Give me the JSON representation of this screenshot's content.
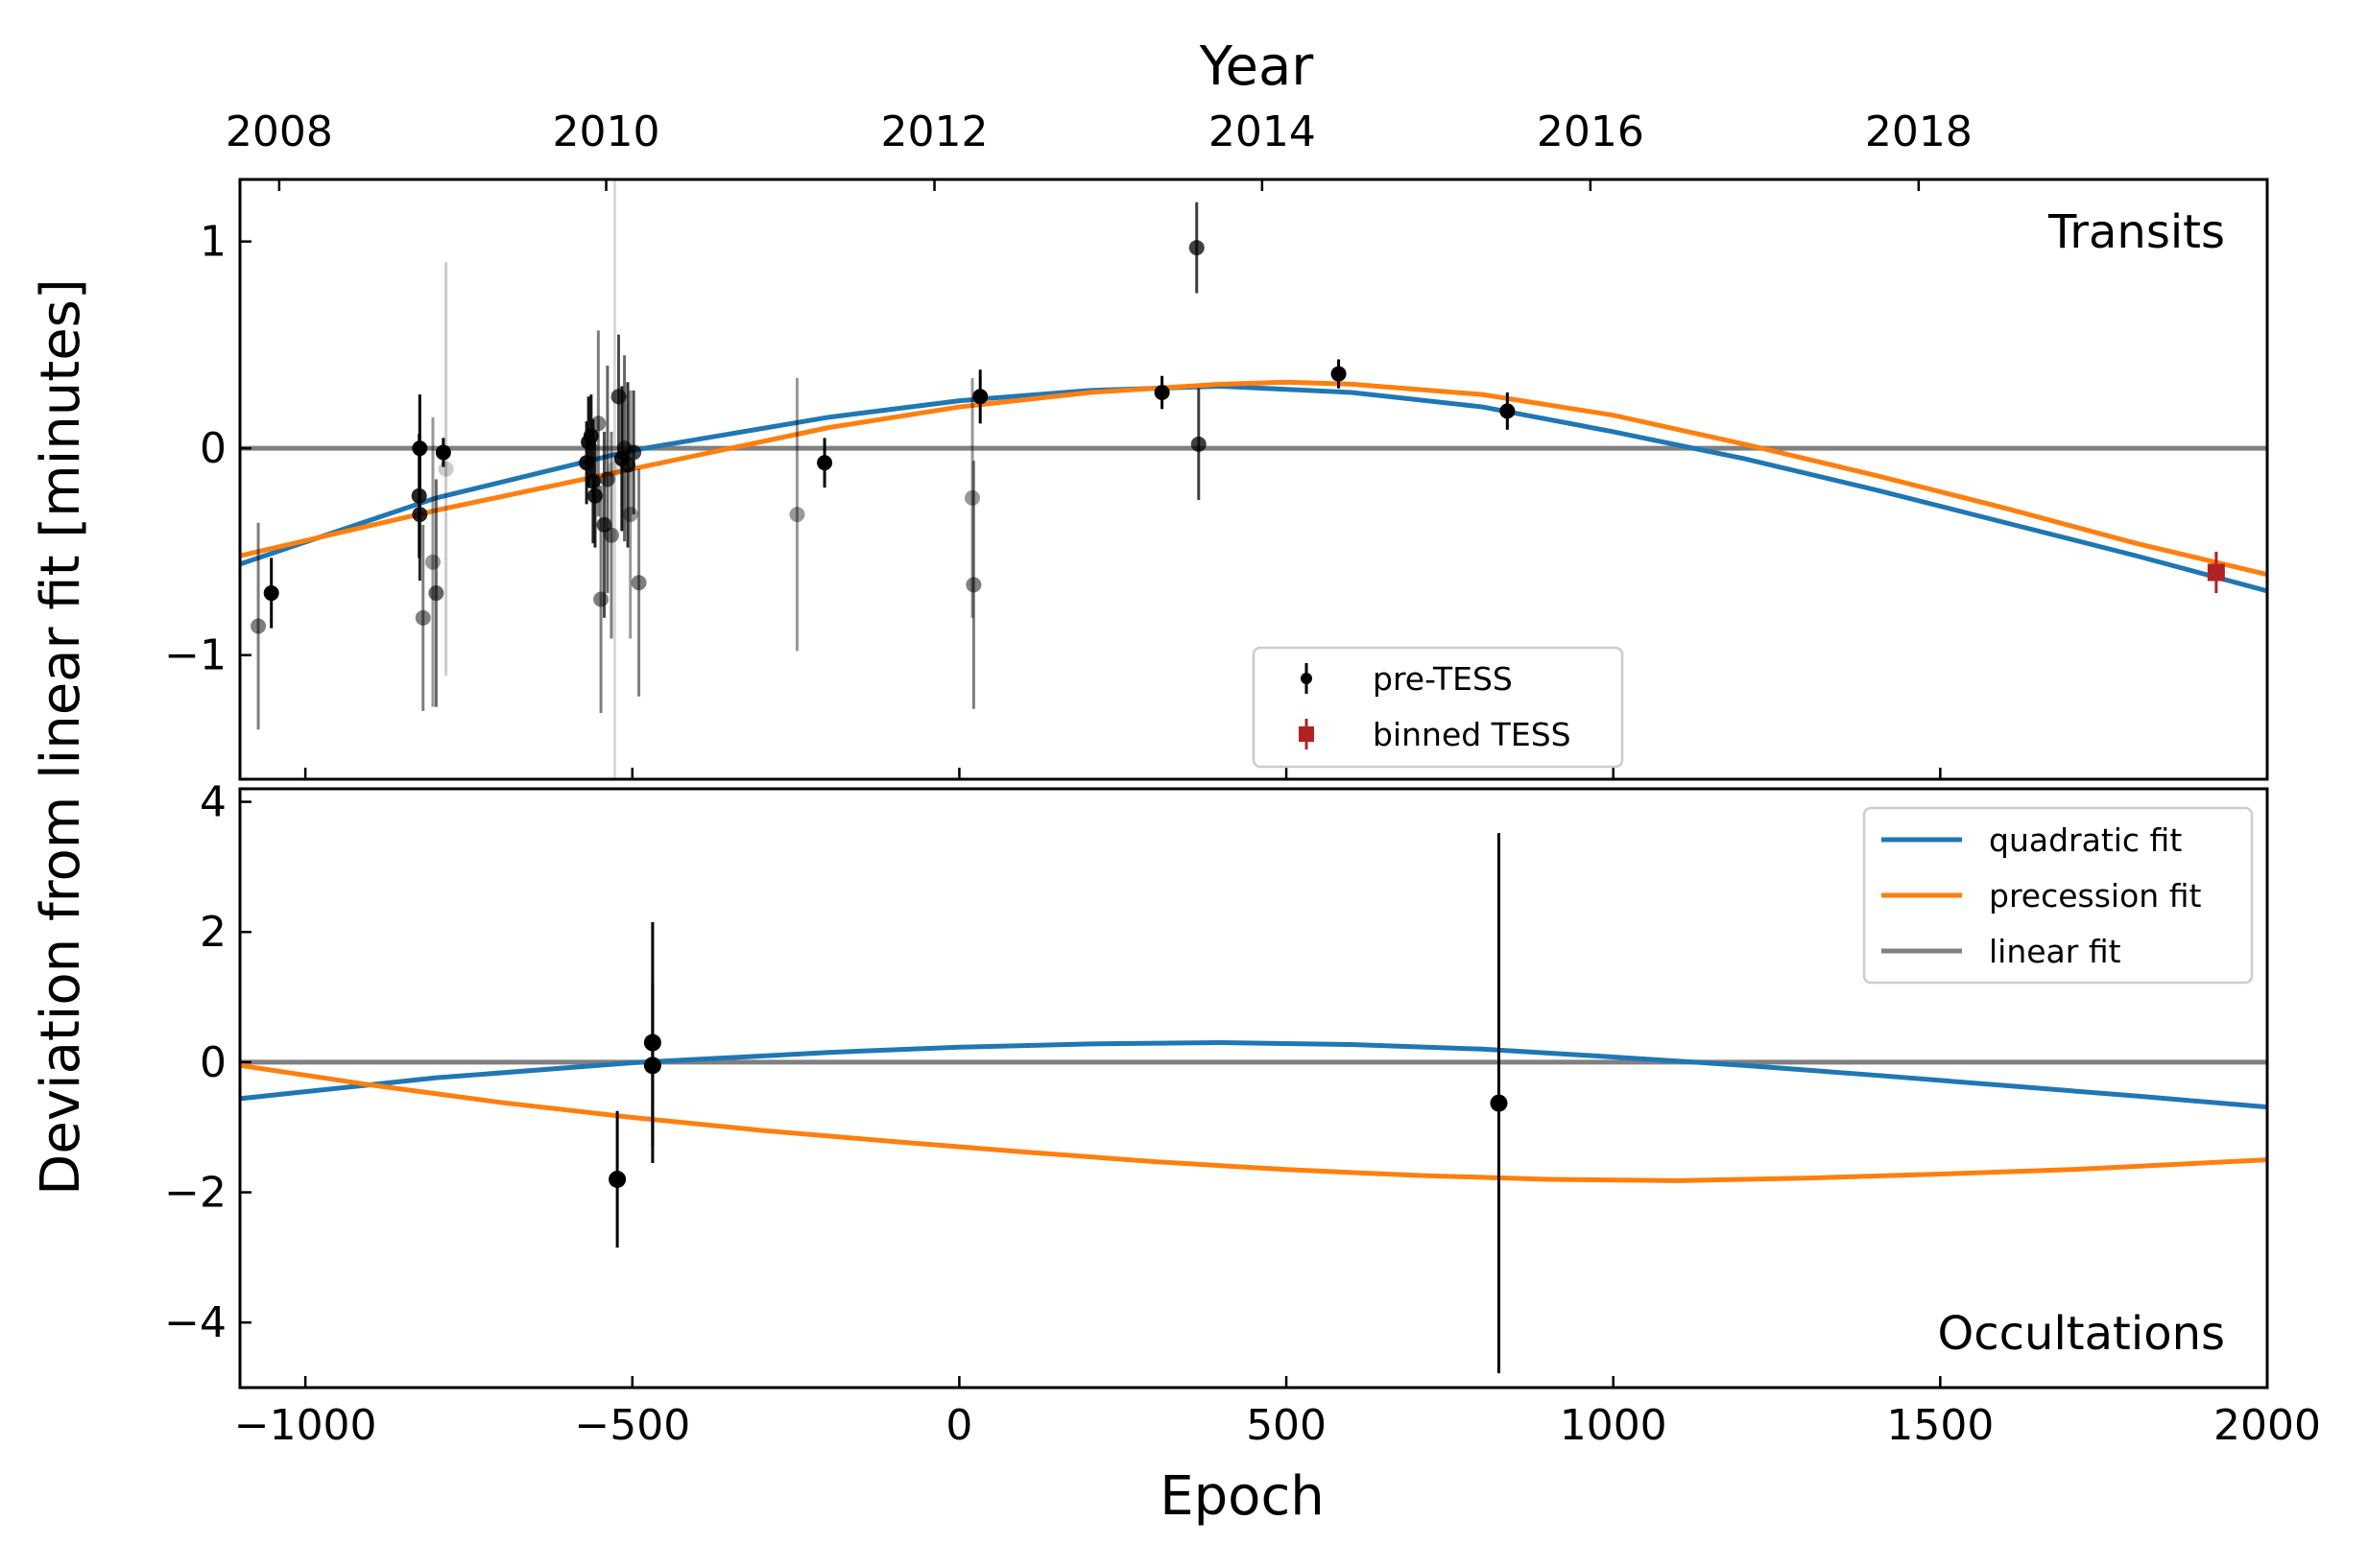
{
  "chart_data": {
    "type": "scatter",
    "colors": {
      "quadratic": "#1f77b4",
      "precession": "#ff7f0e",
      "linear": "#808080",
      "pre_tess": "#000000",
      "binned_tess": "#b22222"
    },
    "x_axis": {
      "label": "Epoch",
      "range": [
        -1100,
        2000
      ],
      "ticks": [
        -1000,
        -500,
        0,
        500,
        1000,
        1500,
        2000
      ],
      "tick_labels": [
        "−1000",
        "−500",
        "0",
        "500",
        "1000",
        "1500",
        "2000"
      ]
    },
    "top_axis": {
      "label": "Year",
      "ticks": [
        2008,
        2010,
        2012,
        2014,
        2016,
        2018
      ],
      "tick_epochs": [
        -1040,
        -540,
        -38,
        463,
        965,
        1467
      ]
    },
    "y_label": "Deviation from linear fit [minutes]",
    "panels": [
      {
        "name": "Transits",
        "y_range": [
          -1.6,
          1.3
        ],
        "y_ticks": [
          -1,
          0,
          1
        ],
        "y_tick_labels": [
          "−1",
          "0",
          "1"
        ],
        "fits": {
          "quadratic": [
            [
              -1100,
              -0.56
            ],
            [
              -800,
              -0.24
            ],
            [
              -500,
              -0.01
            ],
            [
              -200,
              0.15
            ],
            [
              0,
              0.23
            ],
            [
              200,
              0.28
            ],
            [
              400,
              0.3
            ],
            [
              600,
              0.27
            ],
            [
              800,
              0.2
            ],
            [
              1000,
              0.08
            ],
            [
              1200,
              -0.05
            ],
            [
              1400,
              -0.2
            ],
            [
              1600,
              -0.36
            ],
            [
              1800,
              -0.52
            ],
            [
              2000,
              -0.69
            ]
          ],
          "precession": [
            [
              -1100,
              -0.52
            ],
            [
              -800,
              -0.3
            ],
            [
              -500,
              -0.1
            ],
            [
              -200,
              0.1
            ],
            [
              0,
              0.2
            ],
            [
              200,
              0.27
            ],
            [
              400,
              0.31
            ],
            [
              500,
              0.32
            ],
            [
              600,
              0.31
            ],
            [
              800,
              0.26
            ],
            [
              1000,
              0.16
            ],
            [
              1200,
              0.02
            ],
            [
              1400,
              -0.13
            ],
            [
              1600,
              -0.29
            ],
            [
              1800,
              -0.46
            ],
            [
              2000,
              -0.61
            ]
          ],
          "linear": [
            [
              -1100,
              0
            ],
            [
              2000,
              0
            ]
          ]
        },
        "points_pre_tess": [
          {
            "x": -1072,
            "y": -0.86,
            "err": 0.5,
            "alpha": 0.5
          },
          {
            "x": -1052,
            "y": -0.7,
            "err": 0.17,
            "alpha": 1.0
          },
          {
            "x": -825,
            "y": 0.0,
            "err": 0.26,
            "alpha": 1.0
          },
          {
            "x": -826,
            "y": -0.23,
            "err": 0.3,
            "alpha": 0.85
          },
          {
            "x": -825,
            "y": -0.32,
            "err": 0.32,
            "alpha": 0.85
          },
          {
            "x": -820,
            "y": -0.82,
            "err": 0.45,
            "alpha": 0.5
          },
          {
            "x": -805,
            "y": -0.55,
            "err": 0.7,
            "alpha": 0.4
          },
          {
            "x": -800,
            "y": -0.7,
            "err": 0.55,
            "alpha": 0.6
          },
          {
            "x": -789,
            "y": -0.02,
            "err": 0.07,
            "alpha": 1.0
          },
          {
            "x": -785,
            "y": -0.1,
            "err": 1.0,
            "alpha": 0.2
          },
          {
            "x": -570,
            "y": -0.07,
            "err": 0.2,
            "alpha": 0.9
          },
          {
            "x": -567,
            "y": 0.03,
            "err": 0.22,
            "alpha": 0.9
          },
          {
            "x": -563,
            "y": 0.06,
            "err": 0.2,
            "alpha": 0.9
          },
          {
            "x": -560,
            "y": -0.16,
            "err": 0.3,
            "alpha": 0.85
          },
          {
            "x": -557,
            "y": -0.23,
            "err": 0.25,
            "alpha": 0.85
          },
          {
            "x": -552,
            "y": 0.12,
            "err": 0.45,
            "alpha": 0.5
          },
          {
            "x": -548,
            "y": -0.73,
            "err": 0.55,
            "alpha": 0.5
          },
          {
            "x": -543,
            "y": -0.37,
            "err": 0.45,
            "alpha": 0.7
          },
          {
            "x": -538,
            "y": -0.15,
            "err": 0.55,
            "alpha": 0.6
          },
          {
            "x": -532,
            "y": -0.42,
            "err": 0.5,
            "alpha": 0.5
          },
          {
            "x": -527,
            "y": -0.1,
            "err": 1.5,
            "alpha": 0.15
          },
          {
            "x": -521,
            "y": 0.25,
            "err": 0.3,
            "alpha": 0.7
          },
          {
            "x": -516,
            "y": -0.05,
            "err": 0.35,
            "alpha": 0.9
          },
          {
            "x": -512,
            "y": 0.0,
            "err": 0.45,
            "alpha": 0.6
          },
          {
            "x": -507,
            "y": -0.08,
            "err": 0.4,
            "alpha": 0.8
          },
          {
            "x": -503,
            "y": -0.32,
            "err": 0.6,
            "alpha": 0.4
          },
          {
            "x": -498,
            "y": -0.02,
            "err": 0.3,
            "alpha": 0.7
          },
          {
            "x": -490,
            "y": -0.65,
            "err": 0.55,
            "alpha": 0.5
          },
          {
            "x": -248,
            "y": -0.32,
            "err": 0.66,
            "alpha": 0.4
          },
          {
            "x": -206,
            "y": -0.07,
            "err": 0.12,
            "alpha": 1.0
          },
          {
            "x": 20,
            "y": -0.24,
            "err": 0.58,
            "alpha": 0.4
          },
          {
            "x": 22,
            "y": -0.66,
            "err": 0.6,
            "alpha": 0.5
          },
          {
            "x": 32,
            "y": 0.25,
            "err": 0.13,
            "alpha": 1.0
          },
          {
            "x": 310,
            "y": 0.27,
            "err": 0.08,
            "alpha": 1.0
          },
          {
            "x": 363,
            "y": 0.97,
            "err": 0.22,
            "alpha": 0.75
          },
          {
            "x": 366,
            "y": 0.02,
            "err": 0.27,
            "alpha": 0.75
          },
          {
            "x": 580,
            "y": 0.36,
            "err": 0.07,
            "alpha": 1.0
          },
          {
            "x": 838,
            "y": 0.18,
            "err": 0.09,
            "alpha": 1.0
          }
        ],
        "points_binned_tess": [
          {
            "x": 1922,
            "y": -0.6,
            "err": 0.1
          }
        ]
      },
      {
        "name": "Occultations",
        "y_range": [
          -5,
          4.2
        ],
        "y_ticks": [
          -4,
          -2,
          0,
          2,
          4
        ],
        "y_tick_labels": [
          "−4",
          "−2",
          "0",
          "2",
          "4"
        ],
        "fits": {
          "quadratic": [
            [
              -1100,
              -0.56
            ],
            [
              -800,
              -0.24
            ],
            [
              -500,
              -0.01
            ],
            [
              -200,
              0.15
            ],
            [
              0,
              0.23
            ],
            [
              200,
              0.28
            ],
            [
              400,
              0.3
            ],
            [
              600,
              0.27
            ],
            [
              800,
              0.2
            ],
            [
              1000,
              0.08
            ],
            [
              1200,
              -0.05
            ],
            [
              1400,
              -0.2
            ],
            [
              1600,
              -0.36
            ],
            [
              1800,
              -0.52
            ],
            [
              2000,
              -0.69
            ]
          ],
          "precession": [
            [
              -1100,
              -0.05
            ],
            [
              -900,
              -0.35
            ],
            [
              -700,
              -0.62
            ],
            [
              -500,
              -0.85
            ],
            [
              -300,
              -1.05
            ],
            [
              -100,
              -1.22
            ],
            [
              100,
              -1.38
            ],
            [
              300,
              -1.53
            ],
            [
              500,
              -1.65
            ],
            [
              700,
              -1.74
            ],
            [
              900,
              -1.8
            ],
            [
              1100,
              -1.82
            ],
            [
              1300,
              -1.78
            ],
            [
              1500,
              -1.72
            ],
            [
              1700,
              -1.65
            ],
            [
              2000,
              -1.5
            ]
          ],
          "linear": [
            [
              -1100,
              0
            ],
            [
              2000,
              0
            ]
          ]
        },
        "points": [
          {
            "x": -523,
            "y": -1.8,
            "err": 1.05
          },
          {
            "x": -469,
            "y": 0.3,
            "err": 1.85
          },
          {
            "x": -469,
            "y": -0.05,
            "err": 1.25
          },
          {
            "x": 825,
            "y": -0.63,
            "err": 4.15
          }
        ]
      }
    ],
    "legends": {
      "transits": [
        "pre-TESS",
        "binned TESS"
      ],
      "occultations": [
        "quadratic fit",
        "precession fit",
        "linear fit"
      ]
    }
  }
}
